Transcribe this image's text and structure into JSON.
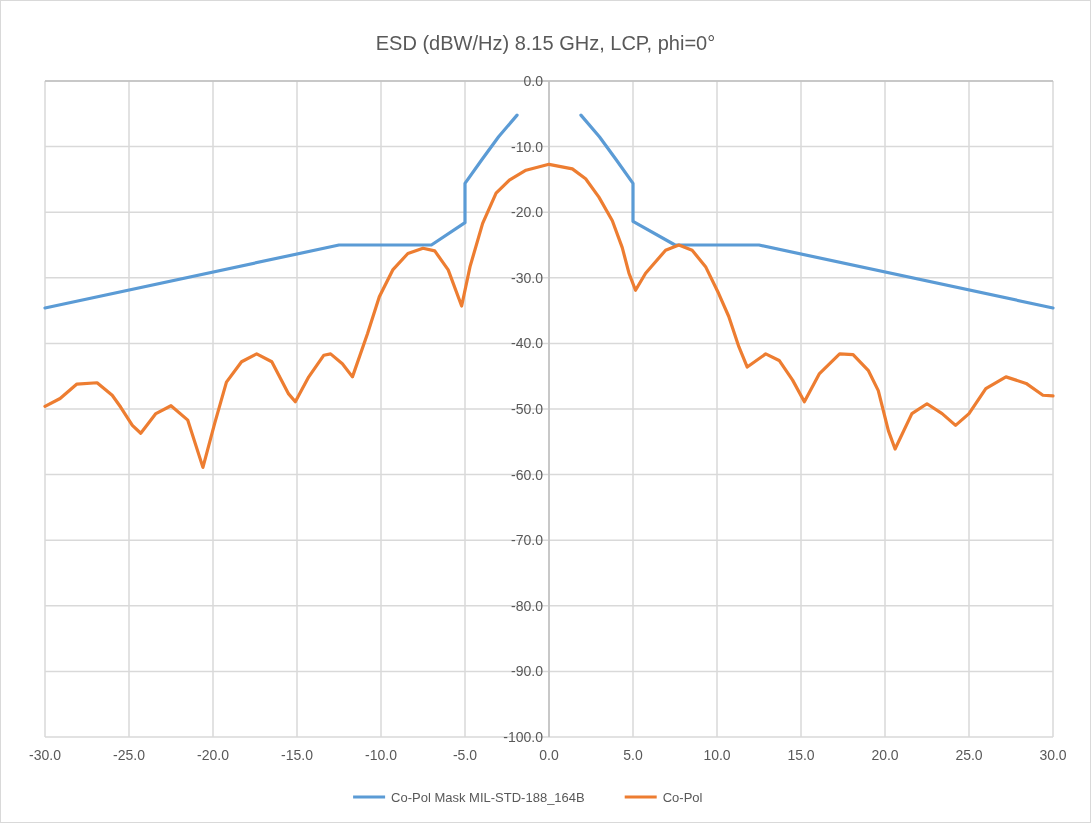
{
  "chart_data": {
    "type": "line",
    "title": "ESD (dBW/Hz) 8.15 GHz, LCP, phi=0°",
    "xlim": [
      -30,
      30
    ],
    "xticks": [
      {
        "value": -30,
        "label": "-30.0"
      },
      {
        "value": -25,
        "label": "-25.0"
      },
      {
        "value": -20,
        "label": "-20.0"
      },
      {
        "value": -15,
        "label": "-15.0"
      },
      {
        "value": -10,
        "label": "-10.0"
      },
      {
        "value": -5,
        "label": "-5.0"
      },
      {
        "value": 0,
        "label": "0.0"
      },
      {
        "value": 5,
        "label": "5.0"
      },
      {
        "value": 10,
        "label": "10.0"
      },
      {
        "value": 15,
        "label": "15.0"
      },
      {
        "value": 20,
        "label": "20.0"
      },
      {
        "value": 25,
        "label": "25.0"
      },
      {
        "value": 30,
        "label": "30.0"
      }
    ],
    "ylim": [
      -100,
      0
    ],
    "yticks": [
      {
        "value": 0,
        "label": "0.0"
      },
      {
        "value": -10,
        "label": "-10.0"
      },
      {
        "value": -20,
        "label": "-20.0"
      },
      {
        "value": -30,
        "label": "-30.0"
      },
      {
        "value": -40,
        "label": "-40.0"
      },
      {
        "value": -50,
        "label": "-50.0"
      },
      {
        "value": -60,
        "label": "-60.0"
      },
      {
        "value": -70,
        "label": "-70.0"
      },
      {
        "value": -80,
        "label": "-80.0"
      },
      {
        "value": -90,
        "label": "-90.0"
      },
      {
        "value": -100,
        "label": "-100.0"
      }
    ],
    "grid": true,
    "legend": "bottom",
    "marker": "none",
    "line_style": "solid",
    "series": [
      {
        "name": "Co-Pol Mask MIL-STD-188_164B",
        "color": "#5b9bd5",
        "x": [
          -30,
          -12.5,
          -7,
          -5,
          -5,
          -4,
          -3,
          -1.9,
          0,
          1.9,
          3,
          4,
          5,
          5,
          7.5,
          12.5,
          30
        ],
        "values": [
          -34.6,
          -25,
          -25,
          -21.6,
          -15.6,
          -12,
          -8.5,
          -5.2,
          null,
          -5.2,
          -8.5,
          -12,
          -15.6,
          -21.4,
          -25,
          -25,
          -34.6
        ]
      },
      {
        "name": "Co-Pol",
        "color": "#ed7d31",
        "x": [
          -30,
          -29.1,
          -28.1,
          -26.9,
          -26,
          -25.5,
          -24.8,
          -24.3,
          -23.4,
          -22.5,
          -21.5,
          -20.6,
          -19.9,
          -19.2,
          -18.3,
          -17.4,
          -16.5,
          -15.5,
          -15.1,
          -14.3,
          -13.4,
          -13,
          -12.3,
          -11.7,
          -10.8,
          -10.1,
          -9.3,
          -8.4,
          -7.5,
          -6.8,
          -6,
          -5.2,
          -4.7,
          -3.95,
          -3.15,
          -2.36,
          -1.37,
          0,
          1.39,
          2.18,
          2.97,
          3.77,
          4.36,
          4.76,
          5.15,
          5.75,
          6.94,
          7.73,
          8.52,
          9.32,
          10.1,
          10.7,
          11.3,
          11.8,
          12.9,
          13.7,
          14.5,
          15.2,
          16.1,
          17.3,
          18.1,
          19,
          19.6,
          20.2,
          20.6,
          21.6,
          22.5,
          23.4,
          24.2,
          25,
          26,
          27.2,
          28.4,
          29.4,
          30
        ],
        "values": [
          -49.6,
          -48.4,
          -46.2,
          -46,
          -47.9,
          -49.7,
          -52.5,
          -53.7,
          -50.7,
          -49.5,
          -51.7,
          -58.9,
          -52.2,
          -45.9,
          -42.8,
          -41.6,
          -42.8,
          -47.7,
          -48.9,
          -45.1,
          -41.8,
          -41.6,
          -43.1,
          -45.1,
          -38.5,
          -32.9,
          -28.8,
          -26.3,
          -25.5,
          -25.9,
          -28.8,
          -34.3,
          -28.3,
          -21.7,
          -17.1,
          -15.1,
          -13.6,
          -12.7,
          -13.4,
          -14.9,
          -17.7,
          -21.3,
          -25.4,
          -29.3,
          -31.9,
          -29.3,
          -25.8,
          -25,
          -25.8,
          -28.3,
          -32.4,
          -35.9,
          -40.5,
          -43.6,
          -41.6,
          -42.6,
          -45.6,
          -48.9,
          -44.6,
          -41.6,
          -41.7,
          -44.1,
          -47.2,
          -53.3,
          -56.1,
          -50.7,
          -49.2,
          -50.7,
          -52.5,
          -50.7,
          -46.9,
          -45.1,
          -46.1,
          -47.9,
          -48
        ]
      }
    ]
  }
}
